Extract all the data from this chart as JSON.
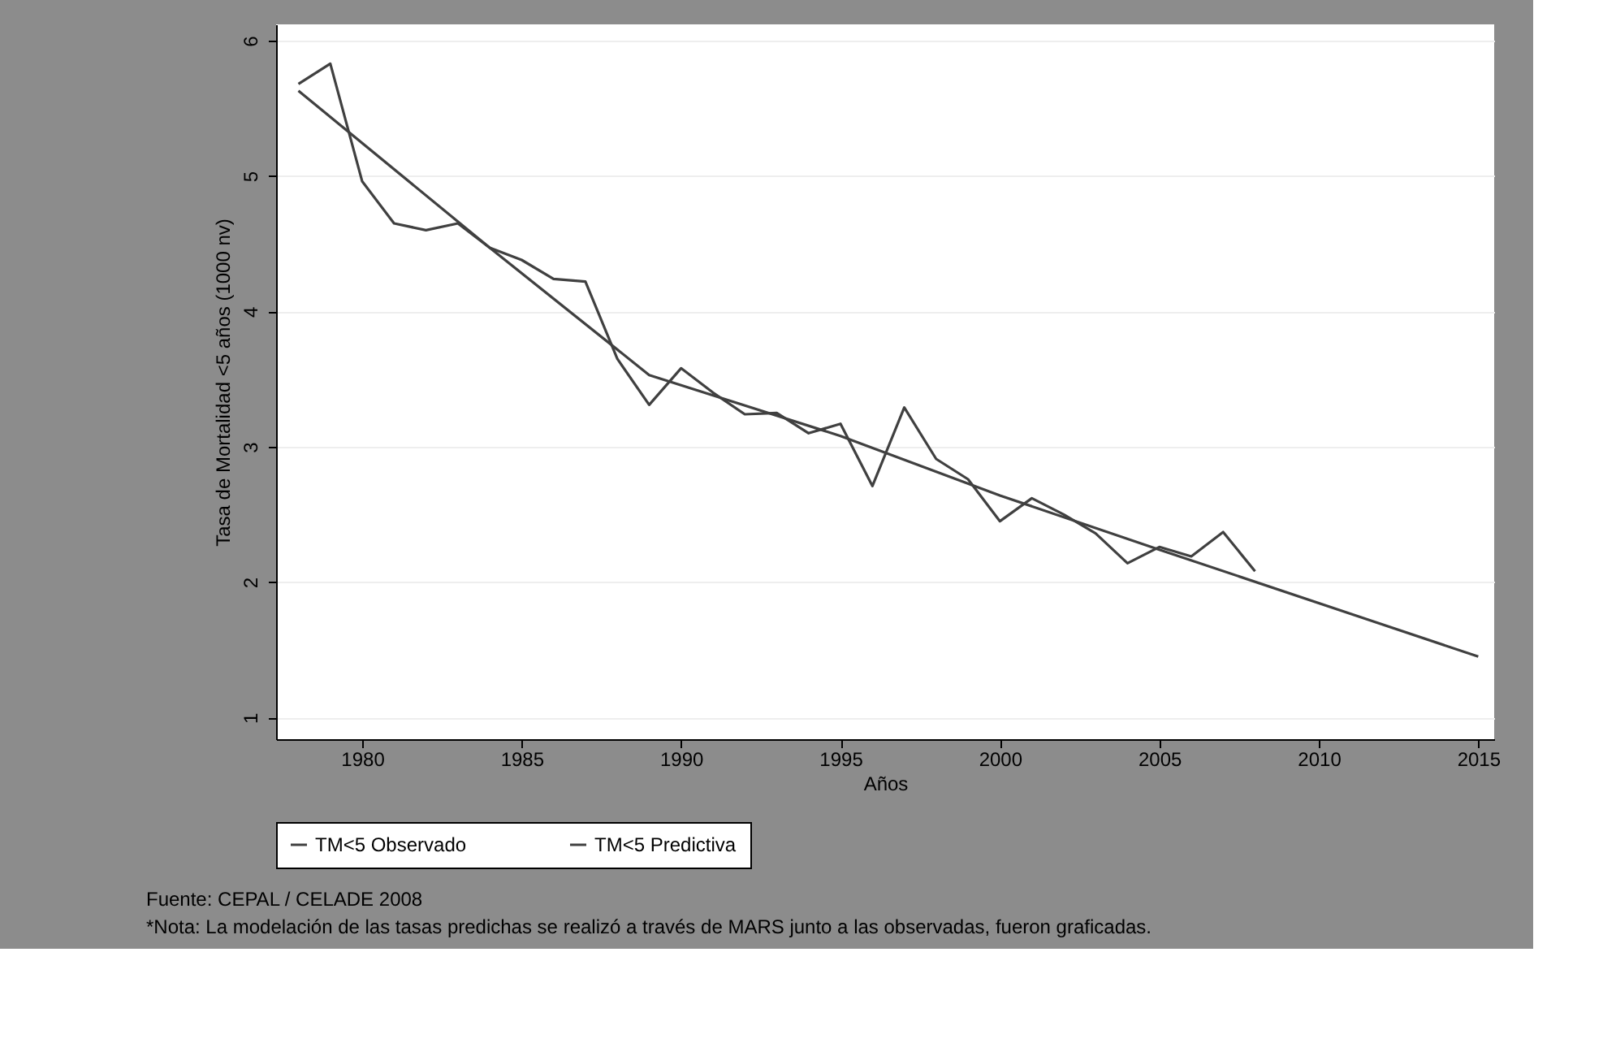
{
  "chart_data": {
    "type": "line",
    "xlabel": "Años",
    "ylabel": "Tasa de Mortalidad <5 años (1000 nv)",
    "xlim": [
      1977.3,
      2015.5
    ],
    "ylim": [
      0.84,
      6.12
    ],
    "xticks": [
      1980,
      1985,
      1990,
      1995,
      2000,
      2005,
      2010,
      2015
    ],
    "yticks": [
      1,
      2,
      3,
      4,
      5,
      6
    ],
    "grid": "y",
    "legend": "bottom",
    "line_style": "solid",
    "marker": "none",
    "series": [
      {
        "name": "TM<5 Observado",
        "color": "#404040",
        "x": [
          1978,
          1979,
          1980,
          1981,
          1982,
          1983,
          1984,
          1985,
          1986,
          1987,
          1988,
          1989,
          1990,
          1991,
          1992,
          1993,
          1994,
          1995,
          1996,
          1997,
          1998,
          1999,
          2000,
          2001,
          2002,
          2003,
          2004,
          2005,
          2006,
          2007,
          2008
        ],
        "values": [
          5.68,
          5.83,
          4.96,
          4.65,
          4.6,
          4.65,
          4.47,
          4.38,
          4.24,
          4.22,
          3.65,
          3.31,
          3.58,
          3.4,
          3.24,
          3.25,
          3.1,
          3.17,
          2.71,
          3.29,
          2.91,
          2.76,
          2.45,
          2.62,
          2.5,
          2.36,
          2.14,
          2.26,
          2.19,
          2.37,
          2.08
        ]
      },
      {
        "name": "TM<5 Predictiva",
        "color": "#404040",
        "x": [
          1978,
          1984,
          1989,
          1995,
          2000,
          2005,
          2015
        ],
        "values": [
          5.63,
          4.47,
          3.53,
          3.08,
          2.64,
          2.24,
          1.45
        ]
      }
    ],
    "annotations": [
      "Fuente: CEPAL / CELADE 2008",
      "*Nota: La modelación de las tasas predichas se realizó a través de MARS junto a las observadas, fueron graficadas."
    ]
  }
}
